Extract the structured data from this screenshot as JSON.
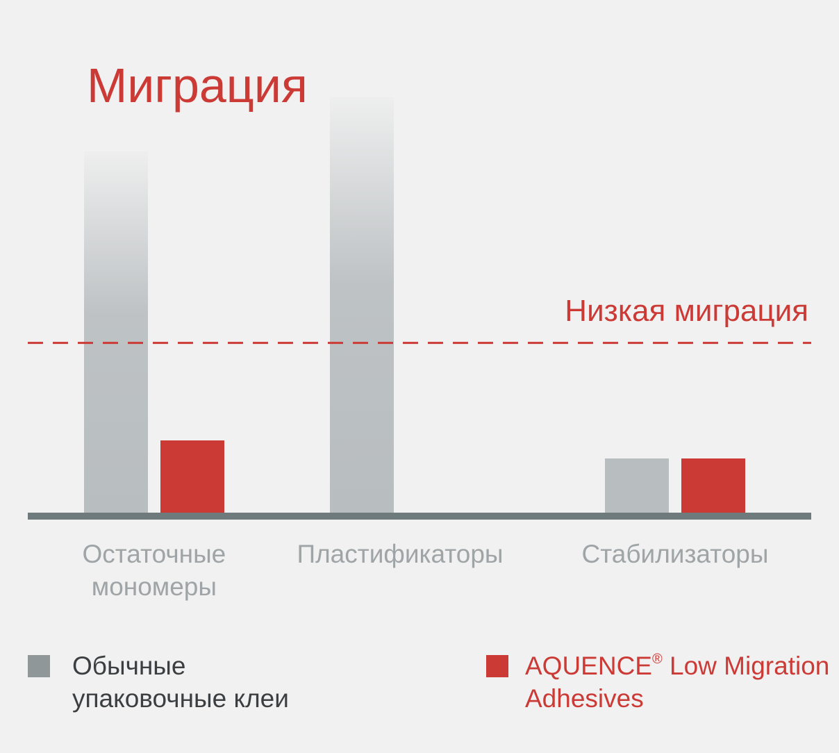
{
  "colors": {
    "background": "#f1f1f1",
    "accent_red": "#cc3a36",
    "bar_grey": "#b8bdbf",
    "axis": "#6e7a7c",
    "label_grey": "#9fa4a7",
    "legend_text": "#3c3f41"
  },
  "chart_data": {
    "type": "bar",
    "title": "Миграция",
    "categories": [
      "Остаточные мономеры",
      "Пластификаторы",
      "Стабилизаторы"
    ],
    "category_lines": [
      [
        "Остаточные",
        "мономеры"
      ],
      [
        "Пластификаторы"
      ],
      [
        "Стабилизаторы"
      ]
    ],
    "series": [
      {
        "name": "Обычные упаковочные клеи",
        "color": "#b8bdbf",
        "values": [
          100,
          115,
          15
        ]
      },
      {
        "name": "AQUENCE® Low Migration Adhesives",
        "color": "#cc3a36",
        "values": [
          20,
          null,
          15
        ]
      }
    ],
    "threshold": {
      "label": "Низкая миграция",
      "value": 47
    },
    "ylim": [
      0,
      130
    ],
    "xlabel": "",
    "ylabel": "",
    "grid": false,
    "legend_position": "bottom"
  },
  "legend": [
    {
      "lines": [
        "Обычные",
        "упаковочные клеи"
      ],
      "swatch_color": "#8f9799",
      "text_color": "#3c3f41"
    },
    {
      "brand": "AQUENCE",
      "mark": "®",
      "line1_rest": " Low Migration",
      "line2": "Adhesives",
      "swatch_color": "#cc3a36",
      "text_color": "#cc3a36"
    }
  ]
}
